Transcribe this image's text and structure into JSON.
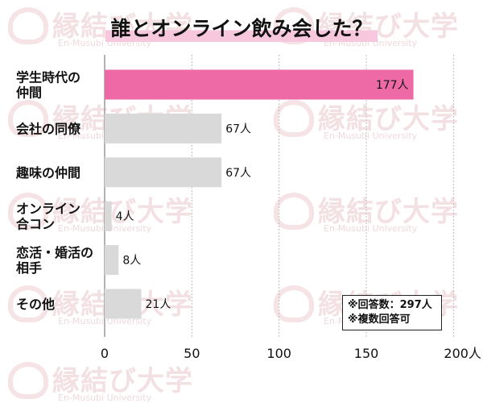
{
  "title": "誰とオンライン飲み会した？",
  "watermark": {
    "brand": "縁結び大学",
    "sub": "En-Musubi University"
  },
  "note": {
    "line1": "※回答数：297人",
    "line2": "※複数回答可"
  },
  "colors": {
    "highlight": "#ee6aa7",
    "bar": "#d9d9d9",
    "axis": "#9a9a9a",
    "grid": "#bdbdbd"
  },
  "chart_data": {
    "type": "bar",
    "orientation": "horizontal",
    "title": "誰とオンライン飲み会した？",
    "categories": [
      "学生時代の\n仲間",
      "会社の同僚",
      "趣味の仲間",
      "オンライン\n合コン",
      "恋活・婚活の\n相手",
      "その他"
    ],
    "values": [
      177,
      67,
      67,
      4,
      8,
      21
    ],
    "value_labels": [
      "177人",
      "67人",
      "67人",
      "4人",
      "8人",
      "21人"
    ],
    "highlight_index": 0,
    "xlim": [
      0,
      200
    ],
    "xticks": [
      0,
      50,
      100,
      150,
      200
    ],
    "xtick_labels": [
      "0",
      "50",
      "100",
      "150",
      "200人"
    ],
    "grid": true
  }
}
